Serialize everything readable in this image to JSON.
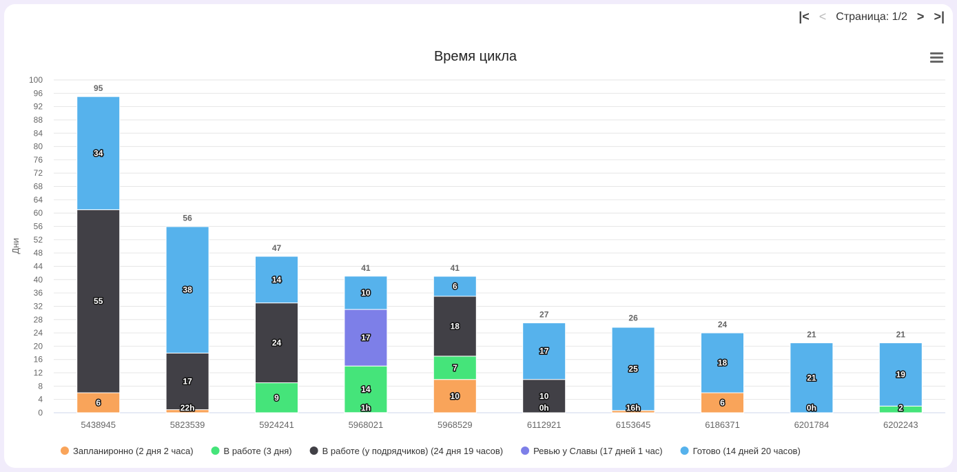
{
  "pager": {
    "first": "|<",
    "prev": "<",
    "label": "Страница: 1/2",
    "next": ">",
    "last": ">|"
  },
  "chart_data": {
    "type": "bar",
    "stacked": true,
    "title": "Время цикла",
    "ylabel": "Дни",
    "xlabel": "",
    "ylim": [
      0,
      100
    ],
    "yticks": [
      0,
      4,
      8,
      12,
      16,
      20,
      24,
      28,
      32,
      36,
      40,
      44,
      48,
      52,
      56,
      60,
      64,
      68,
      72,
      76,
      80,
      84,
      88,
      92,
      96,
      100
    ],
    "grid": true,
    "legend_position": "bottom",
    "categories": [
      "5438945",
      "5823539",
      "5924241",
      "5968021",
      "5968529",
      "6112921",
      "6153645",
      "6186371",
      "6201784",
      "6202243"
    ],
    "totals": [
      95,
      56,
      47,
      41,
      41,
      27,
      26,
      24,
      21,
      21
    ],
    "series": [
      {
        "name": "Запланиронно (2 дня 2 часа)",
        "color": "#f9a45a",
        "values": [
          6,
          0.92,
          null,
          0.04,
          10,
          null,
          0.67,
          6,
          null,
          null
        ],
        "labels": [
          "6",
          "22h",
          null,
          "1h",
          "10",
          null,
          "16h",
          "6",
          null,
          null
        ]
      },
      {
        "name": "В работе (3 дня)",
        "color": "#45e47a",
        "values": [
          null,
          null,
          9,
          14,
          7,
          0,
          null,
          null,
          null,
          2
        ],
        "labels": [
          null,
          null,
          "9",
          "14",
          "7",
          "0h",
          null,
          null,
          null,
          "2"
        ]
      },
      {
        "name": "В работе (у подрядчиков) (24 дня 19 часов)",
        "color": "#414046",
        "values": [
          55,
          17,
          24,
          null,
          18,
          10,
          null,
          null,
          null,
          null
        ],
        "labels": [
          "55",
          "17",
          "24",
          null,
          "18",
          "10",
          null,
          null,
          null,
          null
        ]
      },
      {
        "name": "Ревью у Славы (17 дней 1 час)",
        "color": "#7d7fe8",
        "values": [
          null,
          null,
          null,
          17,
          null,
          null,
          null,
          null,
          0,
          null
        ],
        "labels": [
          null,
          null,
          null,
          "17",
          null,
          null,
          null,
          null,
          "0h",
          null
        ]
      },
      {
        "name": "Готово (14 дней 20 часов)",
        "color": "#56b2ec",
        "values": [
          34,
          38,
          14,
          10,
          6,
          17,
          25,
          18,
          21,
          19
        ],
        "labels": [
          "34",
          "38",
          "14",
          "10",
          "6",
          "17",
          "25",
          "18",
          "21",
          "19"
        ]
      }
    ]
  }
}
